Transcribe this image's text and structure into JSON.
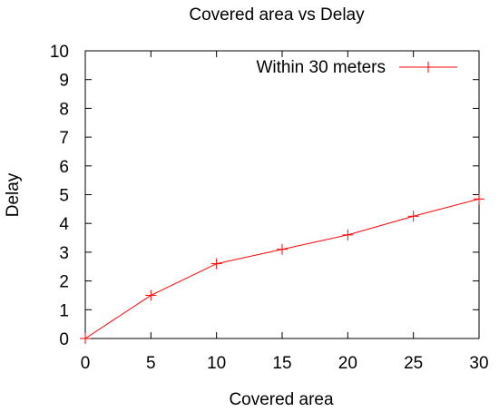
{
  "chart_data": {
    "type": "line",
    "title": "Covered area vs Delay",
    "xlabel": "Covered area",
    "ylabel": "Delay",
    "xlim": [
      0,
      30
    ],
    "ylim": [
      0,
      10
    ],
    "x_ticks": [
      0,
      5,
      10,
      15,
      20,
      25,
      30
    ],
    "y_ticks": [
      0,
      1,
      2,
      3,
      4,
      5,
      6,
      7,
      8,
      9,
      10
    ],
    "grid": false,
    "legend_position": "top-right",
    "series": [
      {
        "name": "Within 30 meters",
        "color": "#ff0000",
        "marker": "plus",
        "x": [
          0,
          5,
          10,
          15,
          20,
          25,
          30
        ],
        "y": [
          0,
          1.5,
          2.6,
          3.1,
          3.6,
          4.25,
          4.85
        ]
      }
    ]
  }
}
